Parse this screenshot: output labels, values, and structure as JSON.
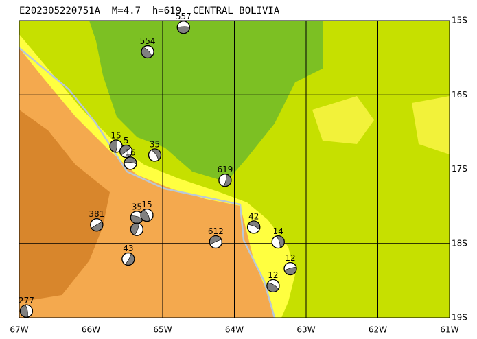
{
  "map": {
    "title": "E202305220751A  M=4.7  h=619  CENTRAL BOLIVIA",
    "xlim": [
      -67,
      -61
    ],
    "ylim": [
      -19,
      -15
    ],
    "xticks": [
      {
        "value": -67,
        "label": "67W"
      },
      {
        "value": -66,
        "label": "66W"
      },
      {
        "value": -65,
        "label": "65W"
      },
      {
        "value": -64,
        "label": "64W"
      },
      {
        "value": -63,
        "label": "63W"
      },
      {
        "value": -62,
        "label": "62W"
      },
      {
        "value": -61,
        "label": "61W"
      }
    ],
    "yticks": [
      {
        "value": -15,
        "label": "15S"
      },
      {
        "value": -16,
        "label": "16S"
      },
      {
        "value": -17,
        "label": "17S"
      },
      {
        "value": -18,
        "label": "18S"
      },
      {
        "value": -19,
        "label": "19S"
      }
    ],
    "events": [
      {
        "label": "557",
        "lon": -64.71,
        "lat": -15.09
      },
      {
        "label": "554",
        "lon": -65.21,
        "lat": -15.42
      },
      {
        "label": "15",
        "lon": -65.65,
        "lat": -16.69
      },
      {
        "label": "5",
        "lon": -65.51,
        "lat": -16.76
      },
      {
        "label": "16",
        "lon": -65.45,
        "lat": -16.92
      },
      {
        "label": "35",
        "lon": -65.11,
        "lat": -16.81
      },
      {
        "label": "619",
        "lon": -64.13,
        "lat": -17.15
      },
      {
        "label": "381",
        "lon": -65.92,
        "lat": -17.75
      },
      {
        "label": "35",
        "lon": -65.36,
        "lat": -17.65
      },
      {
        "label": "15",
        "lon": -65.22,
        "lat": -17.62
      },
      {
        "label": null,
        "lon": -65.36,
        "lat": -17.81
      },
      {
        "label": "612",
        "lon": -64.26,
        "lat": -17.98
      },
      {
        "label": "42",
        "lon": -63.73,
        "lat": -17.78
      },
      {
        "label": "14",
        "lon": -63.39,
        "lat": -17.98
      },
      {
        "label": "43",
        "lon": -65.48,
        "lat": -18.21
      },
      {
        "label": "12",
        "lon": -63.22,
        "lat": -18.34
      },
      {
        "label": "12",
        "lon": -63.46,
        "lat": -18.57
      },
      {
        "label": "277",
        "lon": -66.9,
        "lat": -18.91
      }
    ]
  }
}
